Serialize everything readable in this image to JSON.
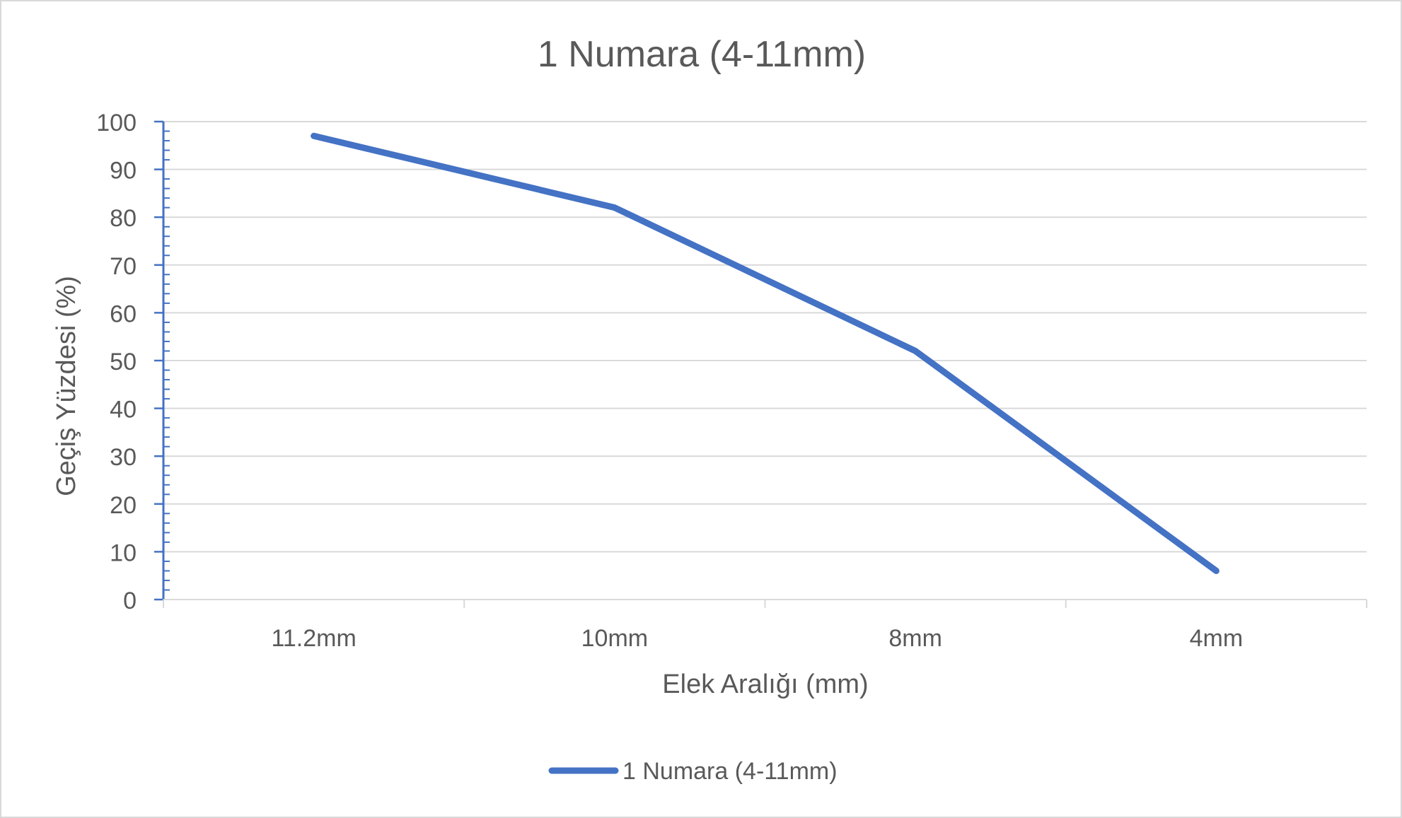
{
  "chart_data": {
    "type": "line",
    "title": "1 Numara (4-11mm)",
    "xlabel": "Elek Aralığı (mm)",
    "ylabel": "Geçiş Yüzdesi (%)",
    "categories": [
      "11.2mm",
      "10mm",
      "8mm",
      "4mm"
    ],
    "series": [
      {
        "name": "1 Numara (4-11mm)",
        "values": [
          97,
          82,
          52,
          6
        ],
        "color": "#4472c4"
      }
    ],
    "ylim": [
      0,
      100
    ],
    "yticks": [
      0,
      10,
      20,
      30,
      40,
      50,
      60,
      70,
      80,
      90,
      100
    ],
    "grid": true,
    "legend": "bottom-center"
  },
  "colors": {
    "series": "#4472c4",
    "grid": "#d9d9d9",
    "text": "#595959"
  }
}
